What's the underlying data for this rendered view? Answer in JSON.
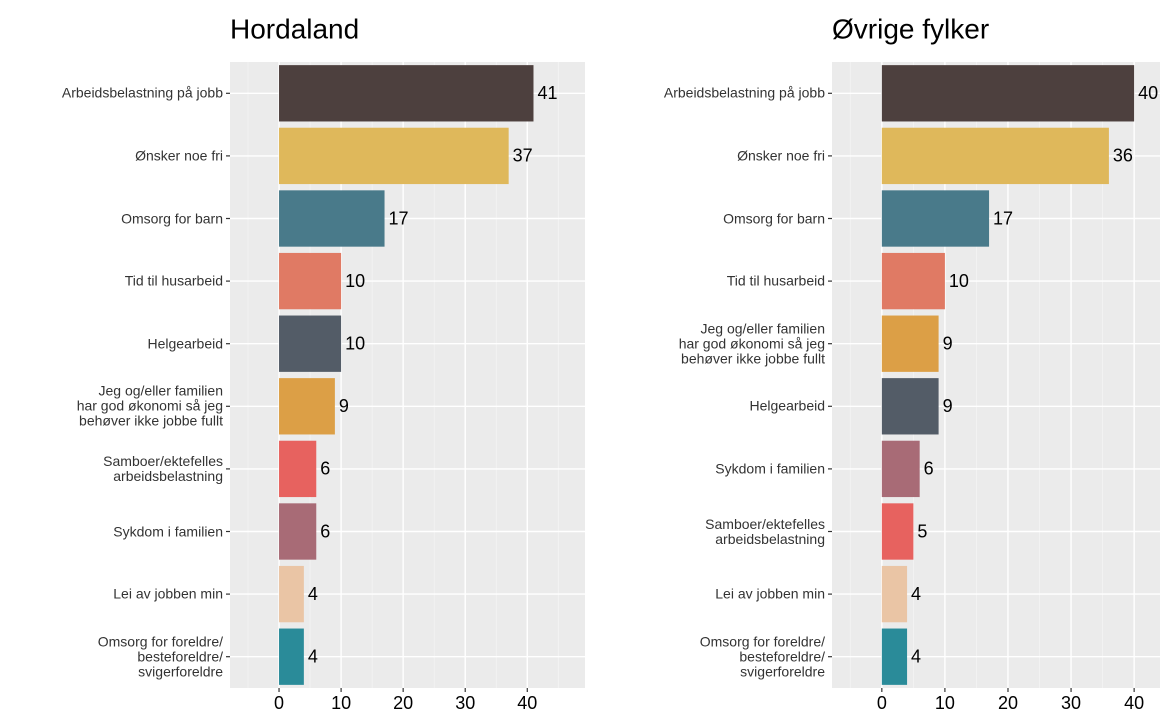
{
  "chart_data": [
    {
      "type": "bar",
      "orientation": "horizontal",
      "title": "Hordaland",
      "categories": [
        "Arbeidsbelastning på jobb",
        "Ønsker noe fri",
        "Omsorg for barn",
        "Tid til husarbeid",
        "Helgearbeid",
        "Jeg og/eller familien\nhar god økonomi så jeg\nbehøver ikke jobbe fullt",
        "Samboer/ektefelles\narbeidsbelastning",
        "Sykdom i familien",
        "Lei av jobben min",
        "Omsorg for foreldre/\nbesteforeldre/\nsvigerforeldre"
      ],
      "values": [
        41,
        37,
        17,
        10,
        10,
        9,
        6,
        6,
        4,
        4
      ],
      "colors": [
        "#4d403e",
        "#dfb85b",
        "#497a8a",
        "#e07a64",
        "#535c67",
        "#dc9f46",
        "#e7625f",
        "#a86b76",
        "#eac5a5",
        "#2a8b99"
      ],
      "xlim": [
        -7.9,
        49.3
      ],
      "xticks": [
        0,
        10,
        20,
        30,
        40
      ],
      "minor_xticks": [
        -5,
        5,
        15,
        25,
        35,
        45
      ],
      "grid": true
    },
    {
      "type": "bar",
      "orientation": "horizontal",
      "title": "Øvrige fylker",
      "categories": [
        "Arbeidsbelastning på jobb",
        "Ønsker noe fri",
        "Omsorg for barn",
        "Tid til husarbeid",
        "Jeg og/eller familien\nhar god økonomi så jeg\nbehøver ikke jobbe fullt",
        "Helgearbeid",
        "Sykdom i familien",
        "Samboer/ektefelles\narbeidsbelastning",
        "Lei av jobben min",
        "Omsorg for foreldre/\nbesteforeldre/\nsvigerforeldre"
      ],
      "values": [
        40,
        36,
        17,
        10,
        9,
        9,
        6,
        5,
        4,
        4
      ],
      "colors": [
        "#4d403e",
        "#dfb85b",
        "#497a8a",
        "#e07a64",
        "#dc9f46",
        "#535c67",
        "#a86b76",
        "#e7625f",
        "#eac5a5",
        "#2a8b99"
      ],
      "xlim": [
        -7.9,
        44.1
      ],
      "xticks": [
        0,
        10,
        20,
        30,
        40
      ],
      "minor_xticks": [
        -5,
        5,
        15,
        25,
        35
      ],
      "grid": true
    }
  ]
}
